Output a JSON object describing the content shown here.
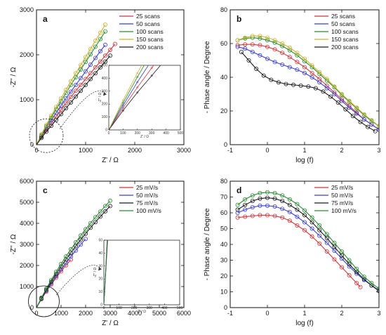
{
  "chart_data": [
    {
      "panel": "a",
      "type": "scatter",
      "xlabel": "Z' / Ω",
      "ylabel": "-Z'' / Ω",
      "xlim": [
        0,
        3000
      ],
      "ylim": [
        0,
        3000
      ],
      "xticks": [
        "0",
        "1000",
        "2000",
        "3000"
      ],
      "yticks": [
        "0",
        "1000",
        "2000",
        "3000"
      ],
      "legend": "top-right",
      "series": [
        {
          "name": "25 scans",
          "color": "#d0343a",
          "x": [
            0,
            100,
            200,
            300,
            400,
            500,
            600,
            700,
            800,
            900,
            1000,
            1100,
            1200,
            1300,
            1400,
            1500,
            1600
          ],
          "y": [
            0,
            170,
            330,
            480,
            630,
            780,
            920,
            1060,
            1200,
            1330,
            1460,
            1590,
            1720,
            1850,
            1980,
            2110,
            2240
          ]
        },
        {
          "name": "50 scans",
          "color": "#3b3fcf",
          "x": [
            0,
            100,
            200,
            300,
            400,
            500,
            600,
            700,
            800,
            900,
            1000,
            1100,
            1200,
            1300,
            1400
          ],
          "y": [
            0,
            190,
            370,
            540,
            710,
            870,
            1030,
            1180,
            1330,
            1480,
            1630,
            1780,
            1930,
            2080,
            2220
          ]
        },
        {
          "name": "100 scans",
          "color": "#2a8a33",
          "x": [
            0,
            100,
            200,
            300,
            400,
            500,
            600,
            700,
            800,
            900,
            1000,
            1100,
            1200,
            1300,
            1400
          ],
          "y": [
            0,
            210,
            410,
            600,
            790,
            970,
            1150,
            1330,
            1500,
            1670,
            1840,
            2010,
            2180,
            2350,
            2520
          ]
        },
        {
          "name": "150 scans",
          "color": "#c8b332",
          "x": [
            0,
            100,
            200,
            300,
            400,
            500,
            600,
            700,
            800,
            900,
            1000,
            1100,
            1200,
            1300,
            1400
          ],
          "y": [
            0,
            230,
            440,
            640,
            840,
            1030,
            1220,
            1410,
            1590,
            1770,
            1950,
            2130,
            2310,
            2490,
            2670
          ]
        },
        {
          "name": "200 scans",
          "color": "#1a1a1a",
          "x": [
            0,
            100,
            200,
            300,
            400,
            500,
            600,
            700,
            800,
            900,
            1000,
            1100,
            1200,
            1300,
            1400,
            1500
          ],
          "y": [
            0,
            150,
            290,
            420,
            550,
            680,
            810,
            940,
            1070,
            1200,
            1330,
            1460,
            1590,
            1720,
            1850,
            1980
          ]
        }
      ],
      "inset": {
        "xlim": [
          0,
          500
        ],
        "ylim": [
          0,
          500
        ],
        "xticks": [
          "0",
          "100",
          "200",
          "300",
          "400",
          "500"
        ],
        "yticks": [
          "0",
          "100",
          "200",
          "300",
          "400",
          "500"
        ],
        "xlabel": "Z' / Ω",
        "ylabel": "-Z'' / Ω"
      }
    },
    {
      "panel": "b",
      "type": "scatter",
      "xlabel": "log (f)",
      "ylabel": "- Phase angle / Degree",
      "xlim": [
        -1,
        3
      ],
      "ylim": [
        0,
        80
      ],
      "xticks": [
        "-1",
        "0",
        "1",
        "2",
        "3"
      ],
      "yticks": [
        "0",
        "20",
        "40",
        "60",
        "80"
      ],
      "legend": "top-right",
      "series": [
        {
          "name": "25 scans",
          "color": "#d0343a",
          "x": [
            -0.8,
            -0.6,
            -0.4,
            -0.2,
            0,
            0.2,
            0.4,
            0.6,
            0.8,
            1,
            1.2,
            1.4,
            1.6,
            1.8,
            2,
            2.2,
            2.4,
            2.6,
            2.8,
            3
          ],
          "y": [
            59,
            59.5,
            59.5,
            59,
            58,
            56.5,
            54.5,
            52,
            49,
            46,
            42.5,
            39,
            35,
            31,
            27,
            23,
            19,
            15,
            12,
            9
          ]
        },
        {
          "name": "50 scans",
          "color": "#3b3fcf",
          "x": [
            -0.8,
            -0.6,
            -0.4,
            -0.2,
            0,
            0.2,
            0.4,
            0.6,
            0.8,
            1,
            1.2,
            1.4,
            1.6,
            1.8,
            2,
            2.2,
            2.4,
            2.6,
            2.8,
            3
          ],
          "y": [
            58,
            57,
            55,
            53,
            51,
            49,
            47.5,
            46,
            44.5,
            42.5,
            40,
            37,
            33.5,
            30,
            26,
            22,
            18.5,
            15,
            12,
            9
          ]
        },
        {
          "name": "100 scans",
          "color": "#2a8a33",
          "x": [
            -0.8,
            -0.6,
            -0.4,
            -0.2,
            0,
            0.2,
            0.4,
            0.6,
            0.8,
            1,
            1.2,
            1.4,
            1.6,
            1.8,
            2,
            2.2,
            2.4,
            2.6,
            2.8,
            3
          ],
          "y": [
            62,
            63,
            63.5,
            63,
            62,
            60.5,
            58.5,
            56,
            53,
            49.5,
            46,
            42,
            38,
            34,
            29.5,
            25.5,
            21.5,
            17.5,
            14,
            11
          ]
        },
        {
          "name": "150 scans",
          "color": "#c8b332",
          "x": [
            -0.8,
            -0.6,
            -0.4,
            -0.2,
            0,
            0.2,
            0.4,
            0.6,
            0.8,
            1,
            1.2,
            1.4,
            1.6,
            1.8,
            2,
            2.2,
            2.4,
            2.6,
            2.8,
            3
          ],
          "y": [
            62,
            63.5,
            64.5,
            64.5,
            63.5,
            62,
            60,
            57.5,
            54.5,
            51,
            47,
            43,
            39,
            34.5,
            30,
            26,
            22,
            18,
            14.5,
            11
          ]
        },
        {
          "name": "200 scans",
          "color": "#1a1a1a",
          "x": [
            -0.7,
            -0.5,
            -0.3,
            -0.1,
            0.1,
            0.3,
            0.5,
            0.7,
            0.9,
            1.1,
            1.3,
            1.5,
            1.7,
            1.9,
            2.1,
            2.3,
            2.5,
            2.7,
            2.9
          ],
          "y": [
            55,
            50,
            45,
            41,
            38.5,
            37,
            36,
            35.5,
            35,
            34.5,
            33.5,
            31.5,
            28.5,
            25,
            21,
            17,
            13.5,
            10.5,
            8
          ]
        }
      ]
    },
    {
      "panel": "c",
      "type": "scatter",
      "xlabel": "Z' / Ω",
      "ylabel": "-Z'' / Ω",
      "xlim": [
        0,
        6000
      ],
      "ylim": [
        0,
        6000
      ],
      "xticks": [
        "0",
        "1000",
        "2000",
        "3000",
        "4000",
        "5000",
        "6000"
      ],
      "yticks": [
        "0",
        "1000",
        "2000",
        "3000",
        "4000",
        "5000",
        "6000"
      ],
      "legend": "top-right",
      "series": [
        {
          "name": "25 mV/s",
          "color": "#d0343a",
          "x": [
            0,
            200,
            400,
            600,
            800,
            1000,
            1200,
            1400
          ],
          "y": [
            0,
            400,
            760,
            1100,
            1420,
            1720,
            2010,
            2280
          ]
        },
        {
          "name": "50 mV/s",
          "color": "#3b3fcf",
          "x": [
            0,
            200,
            400,
            600,
            800,
            1000,
            1200,
            1400,
            1600,
            1800,
            2000
          ],
          "y": [
            0,
            420,
            800,
            1150,
            1490,
            1810,
            2120,
            2420,
            2710,
            2990,
            3260
          ]
        },
        {
          "name": "75 mV/s",
          "color": "#1a1a1a",
          "x": [
            0,
            200,
            400,
            600,
            800,
            1000,
            1200,
            1400,
            1600,
            1800,
            2000,
            2200,
            2400,
            2600,
            2800,
            3000
          ],
          "y": [
            0,
            440,
            850,
            1230,
            1600,
            1950,
            2290,
            2610,
            2920,
            3220,
            3510,
            3790,
            4060,
            4320,
            4570,
            4820
          ]
        },
        {
          "name": "100 mV/s",
          "color": "#2a8a33",
          "x": [
            0,
            200,
            400,
            600,
            800,
            1000,
            1200,
            1400,
            1600,
            1800,
            2000,
            2200,
            2400,
            2600,
            2800,
            3000
          ],
          "y": [
            0,
            470,
            900,
            1310,
            1700,
            2070,
            2430,
            2770,
            3100,
            3420,
            3720,
            4010,
            4290,
            4560,
            4820,
            5070
          ]
        }
      ],
      "inset": {
        "xlim": [
          0,
          500
        ],
        "ylim": [
          0,
          50
        ],
        "xticks": [
          "0",
          "100",
          "200",
          "300",
          "400",
          "500"
        ],
        "yticks": [
          "0",
          "10",
          "20",
          "30",
          "40",
          "50"
        ],
        "xlabel": "Z' / Ω",
        "ylabel": "-Z'' / Ω"
      }
    },
    {
      "panel": "d",
      "type": "scatter",
      "xlabel": "log (f)",
      "ylabel": "- Phase angle / Degree",
      "xlim": [
        -1,
        3
      ],
      "ylim": [
        0,
        80
      ],
      "xticks": [
        "-1",
        "0",
        "1",
        "2",
        "3"
      ],
      "yticks": [
        "0",
        "10",
        "20",
        "30",
        "40",
        "50",
        "60",
        "70",
        "80"
      ],
      "legend": "top-right",
      "series": [
        {
          "name": "25 mV/s",
          "color": "#d0343a",
          "x": [
            -0.8,
            -0.6,
            -0.4,
            -0.2,
            0,
            0.2,
            0.4,
            0.6,
            0.8,
            1,
            1.2,
            1.4,
            1.6,
            1.8,
            2,
            2.2,
            2.4,
            2.5
          ],
          "y": [
            57,
            57.5,
            58,
            58.5,
            58.5,
            58,
            57,
            55,
            52,
            49,
            45,
            40.5,
            35.5,
            30.5,
            25.5,
            20.5,
            15.5,
            13
          ]
        },
        {
          "name": "50 mV/s",
          "color": "#3b3fcf",
          "x": [
            -0.8,
            -0.6,
            -0.4,
            -0.2,
            0,
            0.2,
            0.4,
            0.6,
            0.8,
            1,
            1.2,
            1.4,
            1.6,
            1.8,
            2,
            2.2,
            2.4,
            2.6,
            2.8,
            3
          ],
          "y": [
            60,
            62,
            63.5,
            64.5,
            64.5,
            64,
            62.5,
            60.5,
            57.5,
            54,
            50,
            45.5,
            41,
            36,
            31,
            26,
            21.5,
            17.5,
            14,
            11
          ]
        },
        {
          "name": "75 mV/s",
          "color": "#1a1a1a",
          "x": [
            -0.8,
            -0.6,
            -0.4,
            -0.2,
            0,
            0.2,
            0.4,
            0.6,
            0.8,
            1,
            1.2,
            1.4,
            1.6,
            1.8,
            2,
            2.2,
            2.4,
            2.6,
            2.8,
            3
          ],
          "y": [
            62,
            65,
            67.5,
            69,
            69.5,
            69,
            67.5,
            65,
            62,
            58.5,
            54,
            49,
            44,
            38.5,
            33,
            27.5,
            22.5,
            18,
            14,
            10.5
          ]
        },
        {
          "name": "100 mV/s",
          "color": "#2a8a33",
          "x": [
            -0.8,
            -0.6,
            -0.4,
            -0.2,
            0,
            0.2,
            0.4,
            0.6,
            0.8,
            1,
            1.2,
            1.4,
            1.6,
            1.8,
            2,
            2.2,
            2.4,
            2.6,
            2.8,
            3
          ],
          "y": [
            65,
            68.5,
            71,
            72.5,
            73,
            72.5,
            71,
            68.5,
            65.5,
            61.5,
            57,
            52,
            46.5,
            41,
            35.5,
            30,
            24.5,
            19.5,
            15.5,
            12
          ]
        }
      ]
    }
  ]
}
